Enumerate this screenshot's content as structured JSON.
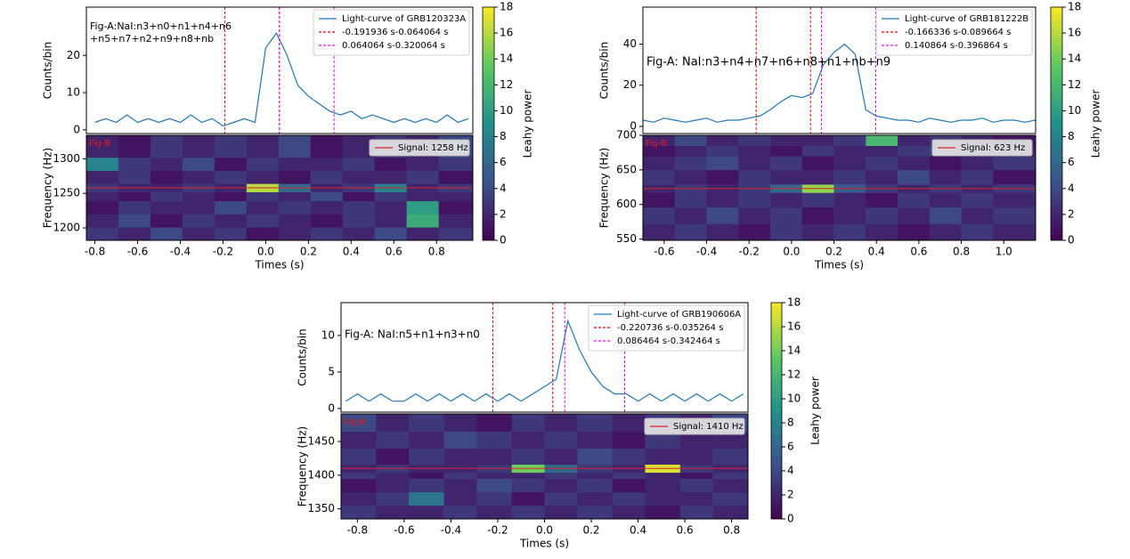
{
  "chart_data": [
    {
      "type": "line",
      "ylabel": "Counts/bin",
      "annotation": [
        "Fig-A:NaI:n3+n0+n1+n4+n6",
        "+n5+n7+n2+n9+n8+nb"
      ],
      "legend": "upper right",
      "xlim": [
        -0.84,
        0.97
      ],
      "ylim": [
        -1,
        33
      ],
      "yticks": [
        0,
        10,
        20
      ],
      "x": [
        -0.8,
        -0.75,
        -0.7,
        -0.65,
        -0.6,
        -0.55,
        -0.5,
        -0.45,
        -0.4,
        -0.35,
        -0.3,
        -0.25,
        -0.2,
        -0.15,
        -0.1,
        -0.05,
        0,
        0.05,
        0.1,
        0.15,
        0.2,
        0.25,
        0.3,
        0.35,
        0.4,
        0.45,
        0.5,
        0.55,
        0.6,
        0.65,
        0.7,
        0.75,
        0.8,
        0.85,
        0.9,
        0.95
      ],
      "series": [
        {
          "name": "Light-curve of GRB120323A",
          "color": "#1f77b4",
          "values": [
            2,
            3,
            2,
            4,
            2,
            3,
            2,
            3,
            2,
            4,
            2,
            3,
            1,
            2,
            3,
            2,
            22,
            26,
            20,
            12,
            9,
            7,
            5,
            4,
            5,
            3,
            4,
            3,
            2,
            3,
            2,
            3,
            2,
            4,
            2,
            3
          ]
        }
      ],
      "intervals": [
        {
          "label": "-0.191936 s-0.064064 s",
          "color": "#ff0000",
          "start": -0.191936,
          "end": 0.064064
        },
        {
          "label": "0.064064 s-0.320064 s",
          "color": "#ff00ff",
          "start": 0.064064,
          "end": 0.320064
        }
      ]
    },
    {
      "type": "heatmap",
      "xlabel": "Times (s)",
      "ylabel": "Frequency (Hz)",
      "annotation": "Fig-B",
      "colormap": "viridis",
      "xlim": [
        -0.84,
        0.97
      ],
      "ylim": [
        1182,
        1334
      ],
      "xticks": [
        -0.8,
        -0.6,
        -0.4,
        -0.2,
        {
          "value": 0,
          "label": "0.0"
        },
        0.2,
        0.4,
        0.6,
        0.8
      ],
      "yticks": [
        1200,
        1250,
        1300
      ],
      "x_bins": [
        -0.84,
        -0.69,
        -0.54,
        -0.39,
        -0.24,
        -0.09,
        0.06,
        0.21,
        0.36,
        0.51,
        0.66,
        0.81,
        0.97
      ],
      "y_bins": [
        1182,
        1201,
        1220,
        1239,
        1252,
        1264,
        1283,
        1302,
        1334
      ],
      "z": [
        [
          3,
          2,
          4,
          2,
          3,
          1,
          2,
          3,
          2,
          4,
          2,
          3
        ],
        [
          2,
          4,
          1,
          3,
          2,
          3,
          2,
          1,
          3,
          2,
          11,
          2
        ],
        [
          1,
          3,
          2,
          2,
          4,
          2,
          3,
          2,
          3,
          2,
          10,
          1
        ],
        [
          2,
          1,
          3,
          2,
          1,
          3,
          2,
          4,
          1,
          3,
          2,
          2
        ],
        [
          3,
          2,
          2,
          3,
          2,
          16,
          6,
          2,
          3,
          8,
          2,
          3
        ],
        [
          2,
          3,
          1,
          2,
          3,
          2,
          1,
          3,
          2,
          2,
          3,
          1
        ],
        [
          8,
          3,
          2,
          4,
          1,
          3,
          2,
          2,
          3,
          1,
          2,
          3
        ],
        [
          2,
          1,
          3,
          2,
          3,
          2,
          4,
          1,
          2,
          3,
          2,
          4
        ]
      ],
      "signal": {
        "label": "Signal: 1258 Hz",
        "value": 1258,
        "color": "#d62728"
      },
      "zlim": [
        0,
        18
      ],
      "zticks": [
        0,
        2,
        4,
        6,
        8,
        10,
        12,
        14,
        16,
        18
      ],
      "zlabel": "Leahy power"
    },
    {
      "type": "line",
      "ylabel": "Counts/bin",
      "annotation": [
        "Fig-A: NaI:n3+n4+n7+n6+n8+n1+nb+n9"
      ],
      "legend": "upper right",
      "xlim": [
        -0.7,
        1.15
      ],
      "ylim": [
        -3.5,
        58
      ],
      "yticks": [
        0,
        20,
        40
      ],
      "x": [
        -0.7,
        -0.65,
        -0.6,
        -0.55,
        -0.5,
        -0.45,
        -0.4,
        -0.35,
        -0.3,
        -0.25,
        -0.2,
        -0.15,
        -0.1,
        -0.05,
        0,
        0.05,
        0.1,
        0.15,
        0.2,
        0.25,
        0.3,
        0.35,
        0.4,
        0.45,
        0.5,
        0.55,
        0.6,
        0.65,
        0.7,
        0.75,
        0.8,
        0.85,
        0.9,
        0.95,
        1,
        1.05,
        1.1,
        1.15
      ],
      "series": [
        {
          "name": "Light-curve of GRB181222B",
          "color": "#1f77b4",
          "values": [
            3,
            2,
            4,
            3,
            2,
            3,
            4,
            2,
            3,
            3,
            4,
            5,
            8,
            12,
            15,
            14,
            16,
            30,
            36,
            40,
            35,
            8,
            5,
            4,
            3,
            3,
            2,
            4,
            3,
            2,
            3,
            3,
            4,
            2,
            3,
            3,
            2,
            3
          ]
        }
      ],
      "intervals": [
        {
          "label": "-0.166336 s-0.089664 s",
          "color": "#ff0000",
          "start": -0.166336,
          "end": 0.089664
        },
        {
          "label": "0.140864 s-0.396864 s",
          "color": "#ff00ff",
          "start": 0.140864,
          "end": 0.396864
        }
      ]
    },
    {
      "type": "heatmap",
      "xlabel": "Times (s)",
      "ylabel": "Frequency (Hz)",
      "annotation": "Fig-B",
      "colormap": "viridis",
      "xlim": [
        -0.7,
        1.15
      ],
      "ylim": [
        548,
        700
      ],
      "xticks": [
        -0.6,
        -0.4,
        -0.2,
        {
          "value": 0,
          "label": "0.0"
        },
        0.2,
        0.4,
        0.6,
        0.8,
        {
          "value": 1,
          "label": "1.0"
        }
      ],
      "yticks": [
        550,
        600,
        650,
        700
      ],
      "x_bins": [
        -0.7,
        -0.55,
        -0.4,
        -0.25,
        -0.1,
        0.05,
        0.2,
        0.35,
        0.5,
        0.65,
        0.8,
        0.95,
        1.15
      ],
      "y_bins": [
        548,
        572,
        596,
        617,
        629,
        650,
        670,
        685,
        700
      ],
      "z": [
        [
          2,
          3,
          2,
          1,
          3,
          2,
          3,
          2,
          1,
          2,
          3,
          2
        ],
        [
          3,
          2,
          4,
          2,
          3,
          1,
          2,
          3,
          2,
          4,
          2,
          3
        ],
        [
          1,
          3,
          2,
          3,
          2,
          3,
          2,
          1,
          3,
          2,
          3,
          2
        ],
        [
          2,
          3,
          2,
          3,
          6,
          15,
          5,
          3,
          2,
          3,
          2,
          3
        ],
        [
          3,
          2,
          1,
          3,
          2,
          2,
          3,
          2,
          4,
          2,
          3,
          1
        ],
        [
          2,
          3,
          4,
          2,
          3,
          1,
          2,
          3,
          2,
          1,
          2,
          3
        ],
        [
          1,
          2,
          3,
          2,
          1,
          3,
          2,
          2,
          3,
          4,
          2,
          2
        ],
        [
          2,
          4,
          2,
          3,
          2,
          2,
          3,
          12,
          2,
          3,
          2,
          1
        ]
      ],
      "signal": {
        "label": "Signal: 623 Hz",
        "value": 623,
        "color": "#d62728"
      },
      "zlim": [
        0,
        18
      ],
      "zticks": [
        0,
        2,
        4,
        6,
        8,
        10,
        12,
        14,
        16,
        18
      ],
      "zlabel": "Leahy power"
    },
    {
      "type": "line",
      "ylabel": "Counts/bin",
      "annotation": [
        "Fig-A: NaI:n5+n1+n3+n0"
      ],
      "legend": "upper right",
      "xlim": [
        -0.87,
        0.87
      ],
      "ylim": [
        -0.5,
        14.5
      ],
      "yticks": [
        0,
        5,
        10
      ],
      "x": [
        -0.85,
        -0.8,
        -0.75,
        -0.7,
        -0.65,
        -0.6,
        -0.55,
        -0.5,
        -0.45,
        -0.4,
        -0.35,
        -0.3,
        -0.25,
        -0.2,
        -0.15,
        -0.1,
        -0.05,
        0,
        0.05,
        0.1,
        0.15,
        0.2,
        0.25,
        0.3,
        0.35,
        0.4,
        0.45,
        0.5,
        0.55,
        0.6,
        0.65,
        0.7,
        0.75,
        0.8,
        0.85
      ],
      "series": [
        {
          "name": "Light-curve of GRB190606A",
          "color": "#1f77b4",
          "values": [
            1,
            2,
            1,
            2,
            1,
            1,
            2,
            1,
            2,
            1,
            2,
            1,
            2,
            1,
            2,
            1,
            2,
            3,
            4,
            12,
            8,
            5,
            3,
            2,
            2,
            1,
            2,
            1,
            2,
            1,
            2,
            1,
            2,
            1,
            2
          ]
        }
      ],
      "intervals": [
        {
          "label": "-0.220736 s-0.035264 s",
          "color": "#ff0000",
          "start": -0.220736,
          "end": 0.035264
        },
        {
          "label": "0.086464 s-0.342464 s",
          "color": "#ff00ff",
          "start": 0.086464,
          "end": 0.342464
        }
      ]
    },
    {
      "type": "heatmap",
      "xlabel": "Times (s)",
      "ylabel": "Frequency (Hz)",
      "annotation": "Fig-B",
      "colormap": "viridis",
      "xlim": [
        -0.87,
        0.87
      ],
      "ylim": [
        1335,
        1491
      ],
      "xticks": [
        -0.8,
        -0.6,
        -0.4,
        -0.2,
        {
          "value": 0,
          "label": "0.0"
        },
        0.2,
        0.4,
        0.6,
        0.8
      ],
      "yticks": [
        1350,
        1400,
        1450
      ],
      "x_bins": [
        -0.87,
        -0.72,
        -0.58,
        -0.43,
        -0.29,
        -0.14,
        0,
        0.14,
        0.29,
        0.43,
        0.58,
        0.72,
        0.87
      ],
      "y_bins": [
        1335,
        1355,
        1375,
        1395,
        1404,
        1416,
        1440,
        1465,
        1491
      ],
      "z": [
        [
          3,
          2,
          2,
          3,
          2,
          3,
          2,
          3,
          2,
          1,
          3,
          2
        ],
        [
          2,
          3,
          7,
          2,
          3,
          1,
          3,
          2,
          3,
          2,
          2,
          3
        ],
        [
          1,
          2,
          3,
          2,
          4,
          3,
          2,
          3,
          1,
          2,
          3,
          2
        ],
        [
          3,
          2,
          1,
          3,
          2,
          2,
          3,
          2,
          3,
          2,
          1,
          3
        ],
        [
          2,
          3,
          2,
          2,
          3,
          14,
          6,
          3,
          2,
          17,
          3,
          2
        ],
        [
          3,
          1,
          3,
          2,
          2,
          3,
          2,
          4,
          3,
          2,
          2,
          3
        ],
        [
          2,
          3,
          2,
          4,
          3,
          2,
          3,
          2,
          1,
          3,
          2,
          2
        ],
        [
          4,
          2,
          3,
          2,
          1,
          3,
          2,
          3,
          2,
          3,
          2,
          4
        ]
      ],
      "signal": {
        "label": "Signal: 1410 Hz",
        "value": 1410,
        "color": "#d62728"
      },
      "zlim": [
        0,
        18
      ],
      "zticks": [
        0,
        2,
        4,
        6,
        8,
        10,
        12,
        14,
        16,
        18
      ],
      "zlabel": "Leahy power"
    }
  ]
}
